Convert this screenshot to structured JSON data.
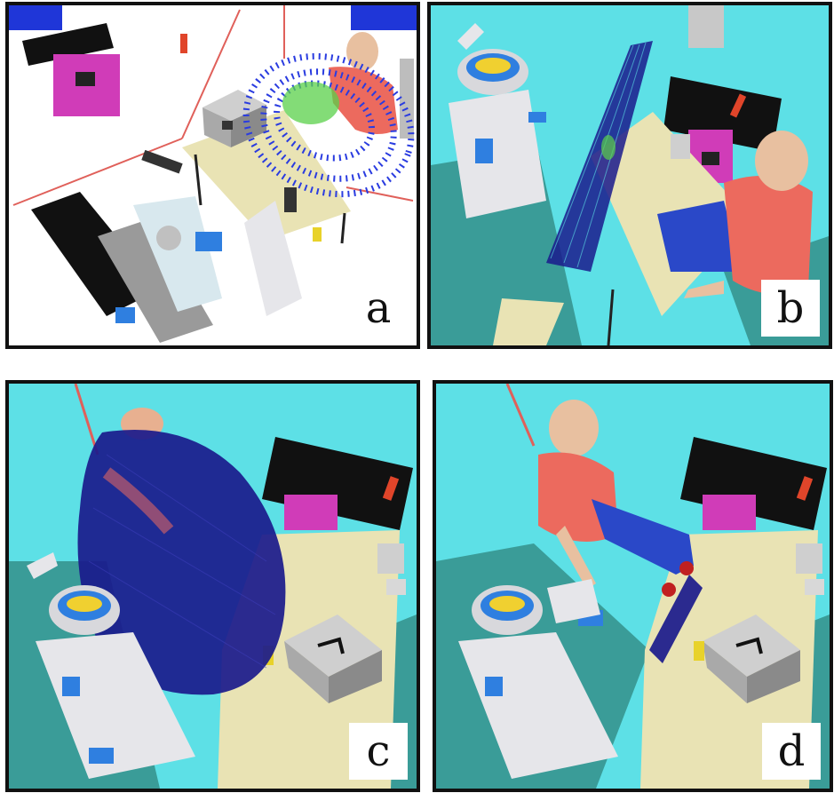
{
  "panels": [
    {
      "label": "a"
    },
    {
      "label": "b"
    },
    {
      "label": "c"
    },
    {
      "label": "d"
    }
  ],
  "colors": {
    "floor_a": "#ffffff",
    "floor_bcd": "#5de0e6",
    "shadow": "#3a9c98",
    "table": "#e9e3b4",
    "points": "#1a1a8c",
    "points_highlight": "#5ad04a",
    "human_shirt": "#ec6a5e",
    "human_pants": "#2a48c8",
    "robot": "#e6e6ea",
    "robot_accent": "#2f7fe0",
    "cabinet": "#e040c0"
  }
}
